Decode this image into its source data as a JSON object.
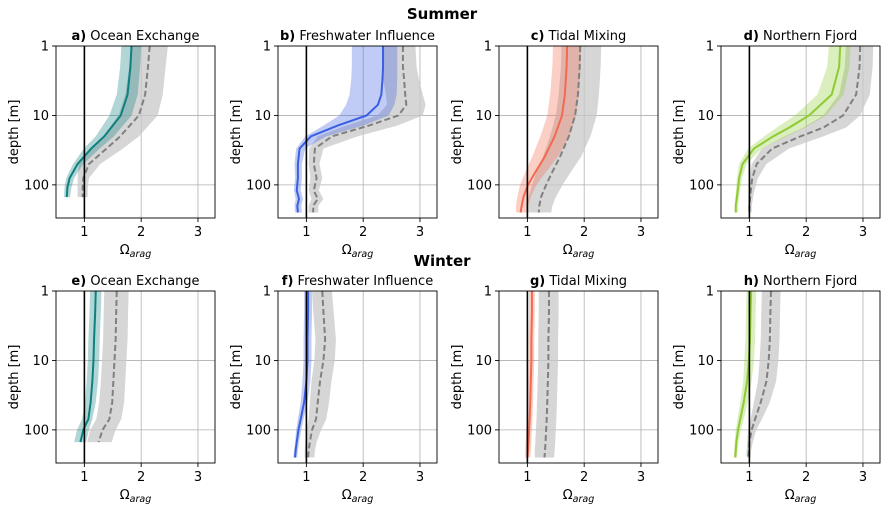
{
  "figure": {
    "title_summer": "Summer",
    "title_winter": "Winter"
  },
  "axes": {
    "xlabel_base": "Ω",
    "xlabel_sub": "arag",
    "ylabel": "depth [m]",
    "x_ticks": [
      "1",
      "2",
      "3"
    ],
    "y_ticks": [
      "1",
      "10",
      "100"
    ],
    "xlim": [
      0.5,
      3.3
    ],
    "ylim_log": [
      1,
      300
    ],
    "y_scale": "log (inverted)",
    "grid": true
  },
  "colors": {
    "ocean_exchange": "#0e8080",
    "freshwater_influence": "#3a5fe0",
    "tidal_mixing": "#f26a4f",
    "northern_fjord": "#8ecb32",
    "reference": "#808080",
    "reference_band": "#c8c8c8",
    "reference_line_at_1": "#000000"
  },
  "chart_data": [
    {
      "type": "line",
      "panel": "a)",
      "title": "Ocean Exchange",
      "season": "Summer",
      "color_key": "ocean_exchange",
      "depth": [
        1,
        2,
        5,
        10,
        20,
        30,
        50,
        80,
        110,
        150
      ],
      "series": [
        {
          "role": "site",
          "median": [
            1.83,
            1.81,
            1.76,
            1.64,
            1.35,
            1.12,
            0.88,
            0.74,
            0.7,
            0.69
          ],
          "low": [
            1.65,
            1.63,
            1.57,
            1.44,
            1.2,
            0.99,
            0.8,
            0.68,
            0.65,
            0.64
          ],
          "high": [
            2.0,
            1.98,
            1.94,
            1.83,
            1.52,
            1.27,
            0.98,
            0.82,
            0.77,
            0.75
          ]
        },
        {
          "role": "reference",
          "median": [
            2.15,
            2.12,
            2.07,
            1.96,
            1.63,
            1.39,
            1.08,
            0.98,
            0.97,
            0.97
          ],
          "low": [
            1.82,
            1.79,
            1.72,
            1.6,
            1.33,
            1.13,
            0.9,
            0.88,
            0.88,
            0.88
          ],
          "high": [
            2.47,
            2.43,
            2.38,
            2.29,
            1.96,
            1.68,
            1.28,
            1.08,
            1.06,
            1.06
          ]
        }
      ]
    },
    {
      "type": "line",
      "panel": "b)",
      "title": "Freshwater Influence",
      "season": "Summer",
      "color_key": "freshwater_influence",
      "depth": [
        1,
        2,
        3,
        5,
        7,
        10,
        14,
        20,
        30,
        50,
        80,
        120,
        160,
        200,
        250
      ],
      "series": [
        {
          "role": "site",
          "median": [
            2.35,
            2.35,
            2.34,
            2.32,
            2.26,
            2.06,
            1.55,
            1.08,
            0.88,
            0.85,
            0.85,
            0.83,
            0.87,
            0.84,
            0.85
          ],
          "low": [
            1.8,
            1.8,
            1.79,
            1.76,
            1.7,
            1.58,
            1.3,
            0.98,
            0.82,
            0.79,
            0.8,
            0.78,
            0.81,
            0.79,
            0.8
          ],
          "high": [
            2.6,
            2.6,
            2.6,
            2.59,
            2.55,
            2.45,
            2.0,
            1.35,
            0.98,
            0.92,
            0.92,
            0.9,
            0.94,
            0.91,
            0.92
          ]
        },
        {
          "role": "reference",
          "median": [
            2.7,
            2.7,
            2.72,
            2.74,
            2.76,
            2.62,
            2.1,
            1.45,
            1.15,
            1.13,
            1.18,
            1.13,
            1.2,
            1.12,
            1.12
          ],
          "low": [
            2.35,
            2.34,
            2.35,
            2.4,
            2.42,
            2.25,
            1.7,
            1.2,
            1.05,
            1.04,
            1.07,
            1.04,
            1.09,
            1.04,
            1.04
          ],
          "high": [
            2.92,
            2.94,
            2.98,
            3.05,
            3.1,
            3.05,
            2.6,
            1.9,
            1.3,
            1.23,
            1.28,
            1.22,
            1.3,
            1.21,
            1.21
          ]
        }
      ]
    },
    {
      "type": "line",
      "panel": "c)",
      "title": "Tidal Mixing",
      "season": "Summer",
      "color_key": "tidal_mixing",
      "depth": [
        1,
        2,
        5,
        10,
        20,
        40,
        70,
        100,
        150,
        200,
        250
      ],
      "series": [
        {
          "role": "site",
          "median": [
            1.7,
            1.69,
            1.66,
            1.61,
            1.48,
            1.3,
            1.12,
            1.01,
            0.93,
            0.9,
            0.88
          ],
          "low": [
            1.45,
            1.44,
            1.4,
            1.35,
            1.23,
            1.08,
            0.95,
            0.87,
            0.82,
            0.8,
            0.8
          ],
          "high": [
            1.95,
            1.94,
            1.91,
            1.86,
            1.74,
            1.53,
            1.3,
            1.16,
            1.06,
            1.01,
            0.99
          ]
        },
        {
          "role": "reference",
          "median": [
            1.93,
            1.92,
            1.89,
            1.84,
            1.73,
            1.57,
            1.42,
            1.33,
            1.24,
            1.21,
            1.2
          ],
          "low": [
            1.6,
            1.59,
            1.55,
            1.5,
            1.4,
            1.27,
            1.15,
            1.08,
            1.02,
            1.0,
            0.99
          ],
          "high": [
            2.3,
            2.29,
            2.26,
            2.22,
            2.11,
            1.94,
            1.74,
            1.62,
            1.5,
            1.44,
            1.42
          ]
        }
      ]
    },
    {
      "type": "line",
      "panel": "d)",
      "title": "Northern Fjord",
      "season": "Summer",
      "color_key": "northern_fjord",
      "depth": [
        1,
        2,
        5,
        10,
        15,
        20,
        30,
        50,
        80,
        130,
        200,
        250
      ],
      "series": [
        {
          "role": "site",
          "median": [
            2.6,
            2.58,
            2.45,
            2.05,
            1.7,
            1.42,
            1.08,
            0.88,
            0.82,
            0.79,
            0.76,
            0.76
          ],
          "low": [
            2.4,
            2.37,
            2.2,
            1.8,
            1.48,
            1.26,
            0.98,
            0.82,
            0.78,
            0.76,
            0.74,
            0.74
          ],
          "high": [
            2.78,
            2.76,
            2.66,
            2.35,
            1.98,
            1.66,
            1.22,
            0.95,
            0.87,
            0.83,
            0.8,
            0.8
          ]
        },
        {
          "role": "reference",
          "median": [
            2.95,
            2.94,
            2.88,
            2.65,
            2.3,
            1.9,
            1.4,
            1.13,
            1.05,
            1.02,
            1.0,
            1.0
          ],
          "low": [
            2.7,
            2.68,
            2.58,
            2.3,
            1.95,
            1.62,
            1.22,
            1.04,
            1.0,
            0.99,
            0.98,
            0.98
          ],
          "high": [
            3.18,
            3.17,
            3.12,
            2.95,
            2.7,
            2.3,
            1.7,
            1.3,
            1.15,
            1.08,
            1.04,
            1.04
          ]
        }
      ]
    },
    {
      "type": "line",
      "panel": "e)",
      "title": "Ocean Exchange",
      "season": "Winter",
      "color_key": "ocean_exchange",
      "depth": [
        1,
        2,
        5,
        10,
        20,
        40,
        70,
        100,
        150
      ],
      "series": [
        {
          "role": "site",
          "median": [
            1.2,
            1.19,
            1.17,
            1.16,
            1.14,
            1.11,
            1.07,
            0.98,
            0.93
          ],
          "low": [
            1.1,
            1.09,
            1.07,
            1.06,
            1.04,
            1.01,
            0.96,
            0.87,
            0.82
          ],
          "high": [
            1.3,
            1.29,
            1.27,
            1.26,
            1.24,
            1.2,
            1.14,
            1.08,
            1.03
          ]
        },
        {
          "role": "reference",
          "median": [
            1.57,
            1.56,
            1.55,
            1.53,
            1.51,
            1.49,
            1.44,
            1.32,
            1.25
          ],
          "low": [
            1.35,
            1.34,
            1.33,
            1.31,
            1.29,
            1.26,
            1.21,
            1.1,
            1.05
          ],
          "high": [
            1.78,
            1.77,
            1.76,
            1.74,
            1.72,
            1.7,
            1.65,
            1.55,
            1.48
          ]
        }
      ]
    },
    {
      "type": "line",
      "panel": "f)",
      "title": "Freshwater Influence",
      "season": "Winter",
      "color_key": "freshwater_influence",
      "depth": [
        1,
        2,
        5,
        10,
        20,
        40,
        70,
        100,
        150,
        200,
        250
      ],
      "series": [
        {
          "role": "site",
          "median": [
            1.03,
            1.03,
            1.02,
            1.02,
            1.0,
            0.96,
            0.9,
            0.86,
            0.83,
            0.81,
            0.8
          ],
          "low": [
            0.96,
            0.96,
            0.95,
            0.95,
            0.93,
            0.9,
            0.85,
            0.82,
            0.8,
            0.78,
            0.77
          ],
          "high": [
            1.1,
            1.1,
            1.09,
            1.09,
            1.07,
            1.02,
            0.95,
            0.91,
            0.87,
            0.85,
            0.84
          ]
        },
        {
          "role": "reference",
          "median": [
            1.28,
            1.3,
            1.33,
            1.3,
            1.24,
            1.2,
            1.17,
            1.1,
            1.06,
            1.04,
            1.03
          ],
          "low": [
            1.1,
            1.12,
            1.16,
            1.14,
            1.09,
            1.06,
            1.04,
            1.0,
            0.98,
            0.97,
            0.97
          ],
          "high": [
            1.45,
            1.48,
            1.52,
            1.5,
            1.44,
            1.4,
            1.35,
            1.26,
            1.18,
            1.15,
            1.14
          ]
        }
      ]
    },
    {
      "type": "line",
      "panel": "g)",
      "title": "Tidal Mixing",
      "season": "Winter",
      "color_key": "tidal_mixing",
      "depth": [
        1,
        2,
        5,
        10,
        20,
        40,
        70,
        100,
        150,
        200,
        250
      ],
      "series": [
        {
          "role": "site",
          "median": [
            1.08,
            1.08,
            1.07,
            1.07,
            1.06,
            1.05,
            1.04,
            1.03,
            1.02,
            1.01,
            1.0
          ],
          "low": [
            1.03,
            1.03,
            1.02,
            1.02,
            1.01,
            1.0,
            0.99,
            0.98,
            0.97,
            0.96,
            0.96
          ],
          "high": [
            1.13,
            1.13,
            1.12,
            1.12,
            1.11,
            1.1,
            1.09,
            1.08,
            1.07,
            1.06,
            1.05
          ]
        },
        {
          "role": "reference",
          "median": [
            1.38,
            1.38,
            1.37,
            1.37,
            1.36,
            1.35,
            1.34,
            1.33,
            1.32,
            1.31,
            1.3
          ],
          "low": [
            1.2,
            1.2,
            1.19,
            1.19,
            1.18,
            1.17,
            1.16,
            1.15,
            1.14,
            1.13,
            1.13
          ],
          "high": [
            1.55,
            1.55,
            1.54,
            1.54,
            1.53,
            1.52,
            1.51,
            1.5,
            1.49,
            1.48,
            1.47
          ]
        }
      ]
    },
    {
      "type": "line",
      "panel": "h)",
      "title": "Northern Fjord",
      "season": "Winter",
      "color_key": "northern_fjord",
      "depth": [
        1,
        2,
        5,
        10,
        20,
        40,
        70,
        100,
        150,
        200,
        250
      ],
      "series": [
        {
          "role": "site",
          "median": [
            1.03,
            1.02,
            1.01,
            0.99,
            0.96,
            0.9,
            0.84,
            0.8,
            0.77,
            0.76,
            0.75
          ],
          "low": [
            0.95,
            0.94,
            0.93,
            0.91,
            0.89,
            0.84,
            0.79,
            0.76,
            0.74,
            0.73,
            0.73
          ],
          "high": [
            1.12,
            1.11,
            1.1,
            1.08,
            1.04,
            0.97,
            0.9,
            0.85,
            0.81,
            0.79,
            0.78
          ]
        },
        {
          "role": "reference",
          "median": [
            1.38,
            1.37,
            1.36,
            1.34,
            1.3,
            1.2,
            1.1,
            1.04,
            1.0,
            0.99,
            0.98
          ],
          "low": [
            1.22,
            1.21,
            1.2,
            1.18,
            1.15,
            1.08,
            1.02,
            0.98,
            0.96,
            0.95,
            0.95
          ],
          "high": [
            1.55,
            1.54,
            1.53,
            1.51,
            1.47,
            1.36,
            1.22,
            1.12,
            1.06,
            1.03,
            1.02
          ]
        }
      ]
    }
  ]
}
